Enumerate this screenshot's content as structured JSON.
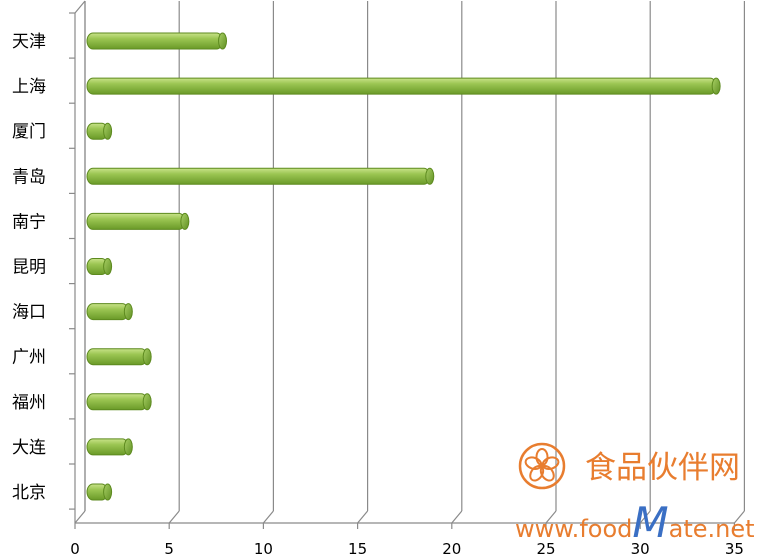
{
  "chart_data": {
    "type": "bar",
    "orientation": "horizontal",
    "categories": [
      "天津",
      "上海",
      "厦门",
      "青岛",
      "南宁",
      "昆明",
      "海口",
      "广州",
      "福州",
      "大连",
      "北京"
    ],
    "values": [
      7.3,
      33.5,
      1.2,
      18.3,
      5.3,
      1.2,
      2.3,
      3.3,
      3.3,
      2.3,
      1.2
    ],
    "xlim": [
      0,
      35
    ],
    "xticks": [
      "0",
      "5",
      "10",
      "15",
      "20",
      "25",
      "30",
      "35"
    ],
    "title": "",
    "xlabel": "",
    "ylabel": "",
    "grid": "vertical",
    "bar_color": "#8fbb44",
    "bar_edge_color": "#5d8a1f",
    "grid_color": "#8a8a8a"
  },
  "watermark": {
    "name_cn": "食品伙伴网",
    "url_prefix": "www.food",
    "url_highlight": "M",
    "url_suffix": "ate.net",
    "logo": "flower-icon",
    "color": "#e87d2f",
    "accent_color": "#3a6fc4"
  }
}
